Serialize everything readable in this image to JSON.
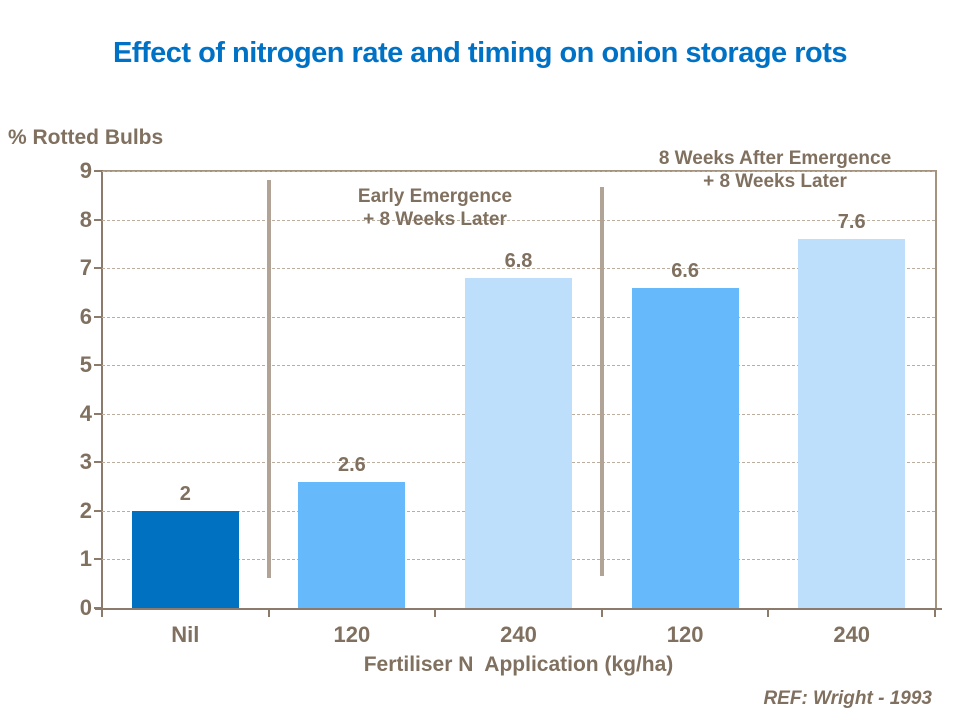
{
  "title": "Effect of nitrogen rate and timing on onion storage rots",
  "footer": {
    "ref_label": "REF: Wright - 1993"
  },
  "chart_data": {
    "type": "bar",
    "title": "Effect of nitrogen rate and timing on onion storage rots",
    "ylabel": "% Rotted Bulbs",
    "xlabel": "Fertiliser N  Application (kg/ha)",
    "categories": [
      "Nil",
      "120",
      "240",
      "120",
      "240"
    ],
    "values": [
      2,
      2.6,
      6.8,
      6.6,
      7.6
    ],
    "bar_value_labels": [
      "2",
      "2.6",
      "6.8",
      "6.6",
      "7.6"
    ],
    "bar_colors": [
      "#0070C0",
      "#66B9FA",
      "#BDDFFB",
      "#66B9FA",
      "#BDDFFB"
    ],
    "ylim": [
      0,
      9
    ],
    "ytick_labels": [
      "0",
      "1",
      "2",
      "3",
      "4",
      "5",
      "6",
      "7",
      "8",
      "9"
    ],
    "grid": "horizontal-dashed",
    "legend": "none",
    "annotations": [
      {
        "lines": [
          "Early Emergence",
          "+ 8 Weeks Later"
        ]
      },
      {
        "lines": [
          "8 Weeks After Emergence",
          "+ 8 Weeks Later"
        ]
      }
    ],
    "colors": {
      "title": "#0072C6",
      "text": "#80705F",
      "axis": "#8C7B6B",
      "gridline": "#BCAE9E",
      "divider": "#B1A396",
      "plot_border": "#A3937F",
      "bar_dark_blue": "#0070C0",
      "bar_medium_blue": "#66B9FA",
      "bar_light_blue": "#BDDFFB"
    }
  }
}
